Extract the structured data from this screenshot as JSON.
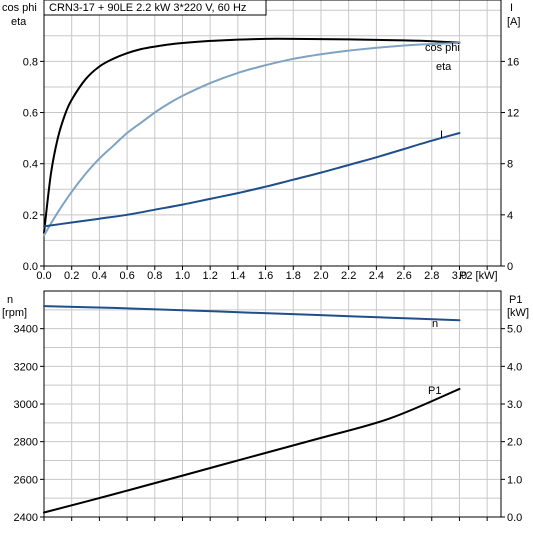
{
  "colors": {
    "eta": "#000000",
    "cos_phi": "#7fa3c2",
    "current": "#1f4e8c",
    "speed": "#1f4e8c",
    "power": "#000000",
    "grid": "#c8c8c8",
    "axis": "#000000"
  },
  "chart_data": [
    {
      "type": "line",
      "title": "CRN3-17 + 90LE   2.2 kW   3*220 V, 60 Hz",
      "xlabel": "P2 [kW]",
      "xlim": [
        0,
        3.3
      ],
      "xticks": [
        0.0,
        0.2,
        0.4,
        0.6,
        0.8,
        1.0,
        1.2,
        1.4,
        1.6,
        1.8,
        2.0,
        2.2,
        2.4,
        2.6,
        2.8,
        3.0
      ],
      "xtick_labels": [
        "0.0",
        "0.2",
        "0.4",
        "0.6",
        "0.8",
        "1.0",
        "1.2",
        "1.4",
        "1.6",
        "1.8",
        "2.0",
        "2.2",
        "2.4",
        "2.6",
        "2.8",
        "3.0"
      ],
      "ylabel_left": [
        "cos phi",
        "eta"
      ],
      "ylim_left": [
        0,
        1.04
      ],
      "yticks_left": [
        0.0,
        0.2,
        0.4,
        0.6,
        0.8
      ],
      "ytick_labels_left": [
        "0.0",
        "0.2",
        "0.4",
        "0.6",
        "0.8"
      ],
      "ylabel_right": [
        "I",
        "[A]"
      ],
      "ylim_right": [
        0,
        20.8
      ],
      "yticks_right": [
        0,
        4,
        8,
        12,
        16
      ],
      "ytick_labels_right": [
        "0",
        "4",
        "8",
        "12",
        "16"
      ],
      "grid": true,
      "series": [
        {
          "name": "eta",
          "axis": "left",
          "x": [
            0.0,
            0.05,
            0.1,
            0.15,
            0.2,
            0.3,
            0.4,
            0.5,
            0.6,
            0.7,
            0.8,
            0.9,
            1.0,
            1.2,
            1.4,
            1.6,
            1.8,
            2.0,
            2.2,
            2.4,
            2.6,
            2.8,
            3.0
          ],
          "y": [
            0.13,
            0.36,
            0.5,
            0.59,
            0.65,
            0.73,
            0.78,
            0.81,
            0.832,
            0.848,
            0.858,
            0.866,
            0.872,
            0.88,
            0.885,
            0.888,
            0.888,
            0.887,
            0.886,
            0.884,
            0.882,
            0.879,
            0.873
          ]
        },
        {
          "name": "cos phi",
          "axis": "left",
          "x": [
            0.0,
            0.1,
            0.2,
            0.3,
            0.4,
            0.5,
            0.6,
            0.7,
            0.8,
            0.9,
            1.0,
            1.2,
            1.4,
            1.6,
            1.8,
            2.0,
            2.2,
            2.4,
            2.6,
            2.8,
            3.0
          ],
          "y": [
            0.12,
            0.21,
            0.29,
            0.36,
            0.42,
            0.47,
            0.52,
            0.56,
            0.6,
            0.635,
            0.665,
            0.715,
            0.755,
            0.785,
            0.81,
            0.828,
            0.842,
            0.853,
            0.862,
            0.868,
            0.872
          ]
        },
        {
          "name": "I",
          "axis": "right",
          "x": [
            0.0,
            0.2,
            0.4,
            0.6,
            0.8,
            1.0,
            1.2,
            1.4,
            1.6,
            1.8,
            2.0,
            2.2,
            2.4,
            2.6,
            2.8,
            3.0
          ],
          "y": [
            3.1,
            3.4,
            3.7,
            4.0,
            4.4,
            4.8,
            5.25,
            5.7,
            6.2,
            6.75,
            7.3,
            7.9,
            8.5,
            9.15,
            9.8,
            10.4
          ]
        }
      ]
    },
    {
      "type": "line",
      "xlim": [
        0,
        3.3
      ],
      "ylabel_left": [
        "n",
        "[rpm]"
      ],
      "ylim_left": [
        2400,
        3600
      ],
      "yticks_left": [
        2400,
        2600,
        2800,
        3000,
        3200,
        3400
      ],
      "ytick_labels_left": [
        "2400",
        "2600",
        "2800",
        "3000",
        "3200",
        "3400"
      ],
      "ylabel_right": [
        "P1",
        "[kW]"
      ],
      "ylim_right": [
        0,
        6
      ],
      "yticks_right": [
        0,
        1,
        2,
        3,
        4,
        5
      ],
      "ytick_labels_right": [
        "0.0",
        "1.0",
        "2.0",
        "3.0",
        "4.0",
        "5.0"
      ],
      "grid": true,
      "series": [
        {
          "name": "n",
          "axis": "left",
          "x": [
            0.0,
            0.5,
            1.0,
            1.5,
            2.0,
            2.5,
            3.0
          ],
          "y": [
            3520,
            3510,
            3498,
            3485,
            3472,
            3458,
            3445
          ]
        },
        {
          "name": "P1",
          "axis": "right",
          "x": [
            0.0,
            0.5,
            1.0,
            1.5,
            2.0,
            2.5,
            3.0
          ],
          "y": [
            0.12,
            0.6,
            1.1,
            1.6,
            2.1,
            2.62,
            3.4
          ]
        }
      ]
    }
  ]
}
